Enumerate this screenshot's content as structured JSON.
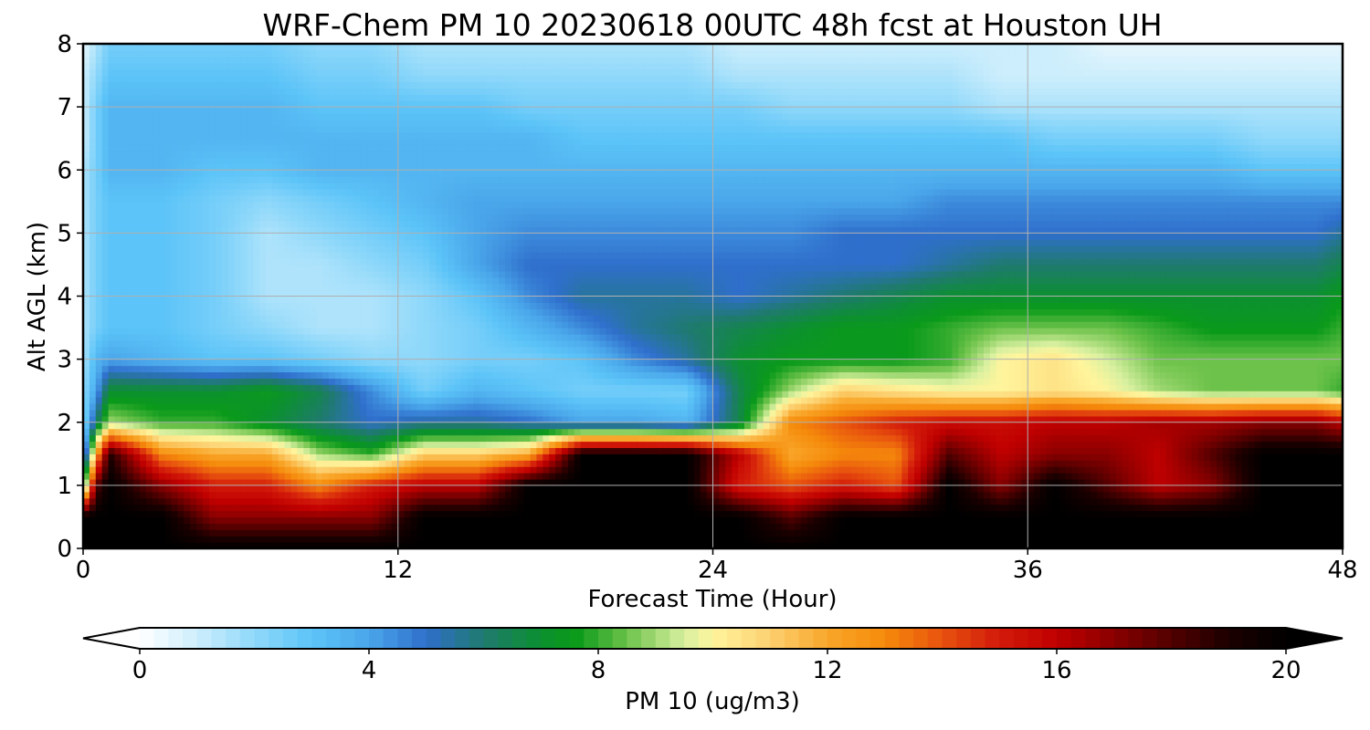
{
  "chart_data": {
    "type": "heatmap",
    "title": "WRF-Chem PM 10  20230618 00UTC 48h fcst at Houston UH",
    "xlabel": "Forecast Time (Hour)",
    "ylabel": "Alt AGL (km)",
    "xlim": [
      0,
      48
    ],
    "ylim": [
      0,
      8
    ],
    "x_ticks": [
      0,
      12,
      24,
      36,
      48
    ],
    "y_ticks": [
      0,
      1,
      2,
      3,
      4,
      5,
      6,
      7,
      8
    ],
    "grid": true,
    "colorbar": {
      "label": "PM 10  (ug/m3)",
      "min": 0,
      "max": 20,
      "ticks": [
        0,
        4,
        8,
        12,
        16,
        20
      ],
      "extend": "both",
      "stops": [
        {
          "v": 0,
          "c": "#ffffff"
        },
        {
          "v": 1,
          "c": "#cdeefc"
        },
        {
          "v": 2,
          "c": "#8fd8fa"
        },
        {
          "v": 3,
          "c": "#5cc4f8"
        },
        {
          "v": 4,
          "c": "#4aa6ea"
        },
        {
          "v": 5,
          "c": "#2f6fcc"
        },
        {
          "v": 6,
          "c": "#1f7a6e"
        },
        {
          "v": 7,
          "c": "#0c9030"
        },
        {
          "v": 7.6,
          "c": "#0a9a1a"
        },
        {
          "v": 8.5,
          "c": "#6cc24a"
        },
        {
          "v": 9.5,
          "c": "#d8f0a0"
        },
        {
          "v": 10,
          "c": "#fff59d"
        },
        {
          "v": 11,
          "c": "#fcd070"
        },
        {
          "v": 12,
          "c": "#f9a72a"
        },
        {
          "v": 13,
          "c": "#f58a0b"
        },
        {
          "v": 14,
          "c": "#e8520e"
        },
        {
          "v": 15,
          "c": "#d21a0a"
        },
        {
          "v": 16,
          "c": "#c00000"
        },
        {
          "v": 17,
          "c": "#8a0000"
        },
        {
          "v": 18,
          "c": "#520000"
        },
        {
          "v": 19,
          "c": "#1c0000"
        },
        {
          "v": 20,
          "c": "#000000"
        }
      ]
    },
    "times": [
      0,
      0.5,
      1,
      3,
      5,
      7,
      9,
      11,
      13,
      15,
      17,
      19,
      21,
      23,
      25,
      27,
      29,
      31,
      33,
      35,
      37,
      39,
      41,
      43,
      45,
      47,
      48
    ],
    "heights": [
      0,
      0.5,
      1,
      1.5,
      2,
      2.5,
      3,
      3.5,
      4,
      4.5,
      5,
      5.5,
      6,
      6.5,
      7,
      7.5,
      8
    ],
    "values": [
      [
        20,
        20,
        20,
        20,
        20,
        20,
        20,
        20,
        20,
        20,
        20,
        20,
        20,
        20,
        20,
        20,
        20,
        20,
        20,
        20,
        20,
        20,
        20,
        20,
        20,
        20,
        20
      ],
      [
        20,
        20,
        20,
        20,
        17,
        17,
        17,
        17,
        20,
        20,
        20,
        20,
        20,
        20,
        20,
        18,
        20,
        20,
        20,
        20,
        20,
        20,
        20,
        20,
        20,
        20,
        20
      ],
      [
        7,
        18,
        20,
        17,
        15,
        15,
        13,
        15,
        16,
        16,
        20,
        20,
        20,
        20,
        15,
        14,
        15,
        14,
        20,
        17,
        20,
        18,
        16,
        17,
        20,
        20,
        20
      ],
      [
        3,
        12,
        19,
        13,
        12,
        12,
        9,
        8,
        11,
        11,
        12,
        20,
        20,
        20,
        16,
        12,
        13,
        13,
        18,
        16,
        17,
        17,
        16,
        18,
        20,
        20,
        20
      ],
      [
        2,
        6,
        9,
        8,
        8,
        7,
        6,
        5,
        5.5,
        5.5,
        5,
        4,
        4,
        3.5,
        6.5,
        13,
        14,
        15,
        15.5,
        15.5,
        16,
        16,
        16.5,
        16.5,
        17,
        17,
        16
      ],
      [
        2,
        4,
        7,
        7,
        7,
        7.5,
        6.5,
        4.5,
        2.5,
        3.5,
        3,
        2.5,
        2.5,
        2.5,
        6.5,
        9,
        11,
        10.5,
        10,
        10,
        10.5,
        10,
        9,
        8.5,
        8.5,
        8.5,
        8
      ],
      [
        1.5,
        3.5,
        4,
        3.5,
        3,
        3,
        2.5,
        2,
        2,
        2.5,
        2.5,
        3,
        4.5,
        5.5,
        7,
        7.5,
        7.5,
        7.5,
        8,
        10,
        10.5,
        9.5,
        8.5,
        8.5,
        8.5,
        8.5,
        8.5
      ],
      [
        1.5,
        2.5,
        3,
        3,
        2.5,
        2,
        1.5,
        1.5,
        2,
        2.5,
        3.5,
        4.5,
        5.5,
        6,
        6.5,
        7,
        7.5,
        7.5,
        8,
        8.5,
        8.5,
        8.5,
        8,
        7.5,
        7.5,
        7.5,
        8
      ],
      [
        1.5,
        2.5,
        3,
        3,
        2.5,
        1.5,
        1.5,
        1.5,
        2,
        3,
        4.5,
        5.5,
        5.5,
        5.5,
        5,
        5.5,
        6,
        6.5,
        7,
        7,
        7,
        7,
        7,
        7,
        7,
        7,
        7.5
      ],
      [
        1.5,
        2.5,
        3,
        3,
        2.5,
        1.5,
        1.5,
        2,
        2.5,
        4,
        5,
        5,
        5,
        5,
        5,
        5,
        5,
        5,
        5.5,
        6,
        6,
        6,
        6,
        6,
        6,
        6,
        6.5
      ],
      [
        1.5,
        2.5,
        3,
        3,
        2.5,
        1.5,
        2,
        2.5,
        3,
        4,
        4.5,
        4.5,
        4.5,
        4.5,
        4.5,
        4.5,
        5,
        5,
        5,
        5,
        5,
        5,
        5,
        5,
        5,
        5,
        5.5
      ],
      [
        1.5,
        2.5,
        3,
        3,
        2.5,
        2,
        2.5,
        3,
        3.5,
        4,
        4,
        4,
        4,
        4,
        4,
        4,
        4,
        4,
        4.5,
        4.5,
        4.5,
        4.5,
        4.5,
        4.5,
        4.5,
        4.5,
        4.5
      ],
      [
        1.5,
        2.5,
        3.5,
        3.5,
        3,
        3,
        3.5,
        3.5,
        3.5,
        3.5,
        3.5,
        3.5,
        3.5,
        3.5,
        3.5,
        3.5,
        3.5,
        3.5,
        3.5,
        3.5,
        3.5,
        3.5,
        3.5,
        3.5,
        3,
        3,
        3
      ],
      [
        1,
        2.5,
        3.5,
        3.5,
        3.5,
        3.5,
        3.5,
        3.5,
        3.5,
        3.5,
        3.5,
        3,
        3,
        3,
        3,
        3,
        3,
        3,
        3,
        3,
        2.5,
        2.5,
        2.5,
        2.5,
        2,
        2,
        2
      ],
      [
        1,
        2.5,
        3.5,
        3.5,
        3.5,
        3.5,
        3,
        3,
        3,
        3,
        2.5,
        2.5,
        2.5,
        2.5,
        2.5,
        2,
        2,
        2,
        2,
        1.5,
        1.5,
        1.5,
        1.5,
        1.5,
        1.5,
        1.5,
        1.5
      ],
      [
        1,
        2,
        3,
        3,
        3,
        3,
        2.5,
        2.5,
        2,
        2,
        2,
        2,
        2,
        2,
        1.5,
        1.5,
        1.5,
        1.5,
        1.5,
        1,
        1,
        1,
        1,
        1,
        1,
        1,
        1
      ],
      [
        0.5,
        1.5,
        2.5,
        2.5,
        2.5,
        2.5,
        2,
        2,
        1.5,
        1.5,
        1.5,
        1.5,
        1.5,
        1.5,
        1,
        1,
        1,
        1,
        1,
        1,
        1,
        0.5,
        0.5,
        0.5,
        0.5,
        0.5,
        0.5
      ]
    ]
  }
}
